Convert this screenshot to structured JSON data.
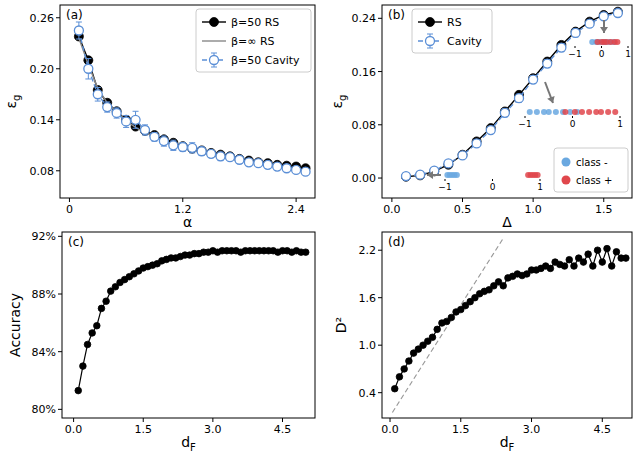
{
  "chart_data": [
    {
      "type": "line",
      "title": "(a)",
      "xlabel": "α",
      "ylabel": "εg",
      "x": [
        0.1,
        0.2,
        0.3,
        0.4,
        0.5,
        0.6,
        0.7,
        0.8,
        0.9,
        1.0,
        1.1,
        1.2,
        1.3,
        1.4,
        1.5,
        1.6,
        1.7,
        1.8,
        1.9,
        2.0,
        2.1,
        2.2,
        2.3,
        2.4,
        2.5
      ],
      "series": [
        {
          "name": "β=50 RS",
          "color": "#000000",
          "marker": "circle",
          "line_style": "solid",
          "values": [
            0.238,
            0.21,
            0.175,
            0.16,
            0.15,
            0.14,
            0.132,
            0.127,
            0.122,
            0.117,
            0.113,
            0.109,
            0.106,
            0.104,
            0.101,
            0.099,
            0.097,
            0.094,
            0.092,
            0.09,
            0.089,
            0.087,
            0.086,
            0.085,
            0.083
          ]
        },
        {
          "name": "β=∞ RS",
          "color": "#888888",
          "marker": "none",
          "line_style": "solid",
          "values": [
            0.236,
            0.205,
            0.177,
            0.16,
            0.149,
            0.139,
            0.131,
            0.125,
            0.12,
            0.115,
            0.111,
            0.107,
            0.104,
            0.101,
            0.098,
            0.096,
            0.094,
            0.092,
            0.09,
            0.088,
            0.086,
            0.084,
            0.082,
            0.081,
            0.079
          ]
        },
        {
          "name": "β=50 Cavity",
          "color": "#5b8fd6",
          "marker": "open_circle",
          "line_style": "dashed",
          "values": [
            0.245,
            0.2,
            0.17,
            0.155,
            0.148,
            0.138,
            0.14,
            0.128,
            0.12,
            0.115,
            0.11,
            0.108,
            0.107,
            0.103,
            0.1,
            0.097,
            0.096,
            0.093,
            0.09,
            0.089,
            0.087,
            0.085,
            0.083,
            0.081,
            0.079
          ],
          "errors": [
            0.01,
            0.012,
            0.008,
            0.006,
            0.006,
            0.007,
            0.01,
            0.006,
            0.005,
            0.006,
            0.006,
            0.005,
            0.006,
            0.005,
            0.004,
            0.005,
            0.004,
            0.004,
            0.004,
            0.004,
            0.003,
            0.003,
            0.003,
            0.003,
            0.003
          ]
        }
      ],
      "xlim": [
        -0.1,
        2.6
      ],
      "xticks": [
        0,
        1.2,
        2.4
      ],
      "ylim": [
        0.048,
        0.275
      ],
      "yticks": [
        0.08,
        0.14,
        {
          "value": 0.2,
          "label": "0.20"
        },
        0.26
      ],
      "grid": false,
      "legend": "upper right"
    },
    {
      "type": "line",
      "title": "(b)",
      "xlabel": "Δ",
      "ylabel": "εg",
      "x": [
        0.1,
        0.2,
        0.3,
        0.4,
        0.5,
        0.6,
        0.7,
        0.8,
        0.9,
        1.0,
        1.1,
        1.2,
        1.3,
        1.4,
        1.5,
        1.6
      ],
      "series": [
        {
          "name": "RS",
          "color": "#000000",
          "marker": "circle",
          "line_style": "solid",
          "values": [
            0.002,
            0.004,
            0.01,
            0.02,
            0.035,
            0.055,
            0.075,
            0.1,
            0.125,
            0.15,
            0.175,
            0.2,
            0.22,
            0.235,
            0.245,
            0.25
          ]
        },
        {
          "name": "Cavity",
          "color": "#5b8fd6",
          "marker": "open_circle",
          "line_style": "dashed",
          "values": [
            0.003,
            0.005,
            0.011,
            0.022,
            0.034,
            0.052,
            0.072,
            0.098,
            0.12,
            0.148,
            0.172,
            0.196,
            0.218,
            0.232,
            0.243,
            0.248
          ],
          "errors": [
            0.002,
            0.002,
            0.003,
            0.004,
            0.004,
            0.005,
            0.005,
            0.006,
            0.006,
            0.006,
            0.006,
            0.006,
            0.006,
            0.005,
            0.005,
            0.004
          ]
        }
      ],
      "xlim": [
        -0.07,
        1.7
      ],
      "xticks": [
        {
          "value": 0,
          "label": "0.0"
        },
        0.5,
        {
          "value": 1,
          "label": "1.0"
        },
        1.5
      ],
      "ylim": [
        -0.03,
        0.26
      ],
      "yticks": [
        {
          "value": 0,
          "label": "0.00"
        },
        0.08,
        0.16,
        0.24
      ],
      "grid": false,
      "legend": "upper left",
      "class_legend": [
        {
          "name": "class -",
          "color": "#6aa8e0"
        },
        {
          "name": "class +",
          "color": "#e0474c"
        }
      ],
      "insets": [
        {
          "xlim": [
            -1,
            1
          ],
          "xticks": [
            {
              "value": -1,
              "label": "−1"
            },
            0,
            1
          ],
          "classes": [
            [
              -0.35,
              -0.2,
              -0.1,
              0.05,
              0.15,
              0.3,
              0.45
            ],
            [
              -0.15,
              0.0,
              0.1,
              0.2,
              0.35,
              0.5,
              0.6
            ]
          ]
        },
        {
          "xlim": [
            -1,
            1
          ],
          "xticks": [
            {
              "value": -1,
              "label": "−1"
            },
            0,
            1
          ],
          "classes": [
            [
              -0.9,
              -0.75,
              -0.6,
              -0.5,
              -0.35,
              -0.2,
              -0.05,
              0.1
            ],
            [
              -0.15,
              0.05,
              0.2,
              0.35,
              0.5,
              0.6,
              0.75,
              0.9
            ]
          ]
        },
        {
          "xlim": [
            -1,
            1
          ],
          "xticks": [
            {
              "value": -1,
              "label": "−1"
            },
            0,
            1
          ],
          "classes": [
            [
              -0.95,
              -0.9,
              -0.85,
              -0.8,
              -0.75
            ],
            [
              0.75,
              0.8,
              0.85,
              0.9,
              0.95
            ]
          ]
        }
      ]
    },
    {
      "type": "line",
      "title": "(c)",
      "xlabel": "dF",
      "ylabel": "Accuracy",
      "x": [
        0.1,
        0.2,
        0.3,
        0.4,
        0.5,
        0.6,
        0.7,
        0.8,
        0.9,
        1.0,
        1.1,
        1.2,
        1.3,
        1.4,
        1.5,
        1.6,
        1.7,
        1.8,
        1.9,
        2.0,
        2.1,
        2.2,
        2.3,
        2.4,
        2.5,
        2.6,
        2.7,
        2.8,
        2.9,
        3.0,
        3.1,
        3.2,
        3.3,
        3.4,
        3.5,
        3.6,
        3.7,
        3.8,
        3.9,
        4.0,
        4.1,
        4.2,
        4.3,
        4.4,
        4.5,
        4.6,
        4.7,
        4.8,
        4.9,
        5.0
      ],
      "series": [
        {
          "color": "#000000",
          "marker": "circle",
          "line_style": "solid",
          "values": [
            81.3,
            83.0,
            84.5,
            85.3,
            85.8,
            87.0,
            87.5,
            88.2,
            88.5,
            88.8,
            89.0,
            89.2,
            89.4,
            89.6,
            89.8,
            89.9,
            90.0,
            90.1,
            90.3,
            90.4,
            90.5,
            90.5,
            90.6,
            90.7,
            90.7,
            90.8,
            90.8,
            90.9,
            90.9,
            91.0,
            90.9,
            91.0,
            91.0,
            91.0,
            91.0,
            90.9,
            91.0,
            91.0,
            91.0,
            91.0,
            91.0,
            91.0,
            91.0,
            90.9,
            91.0,
            91.0,
            90.9,
            91.0,
            90.9,
            90.9
          ]
        }
      ],
      "xlim": [
        -0.25,
        5.2
      ],
      "xticks": [
        {
          "value": 0,
          "label": "0.0"
        },
        1.5,
        {
          "value": 3,
          "label": "3.0"
        },
        4.5
      ],
      "ylim": [
        79.4,
        92.3
      ],
      "yticks": [
        {
          "value": 80,
          "label": "80%"
        },
        {
          "value": 84,
          "label": "84%"
        },
        {
          "value": 88,
          "label": "88%"
        },
        {
          "value": 92,
          "label": "92%"
        }
      ],
      "grid": false
    },
    {
      "type": "line",
      "title": "(d)",
      "xlabel": "dF",
      "ylabel": "D²",
      "x": [
        0.1,
        0.2,
        0.3,
        0.4,
        0.5,
        0.6,
        0.7,
        0.8,
        0.9,
        1.0,
        1.1,
        1.2,
        1.3,
        1.4,
        1.5,
        1.6,
        1.7,
        1.8,
        1.9,
        2.0,
        2.1,
        2.2,
        2.3,
        2.4,
        2.5,
        2.6,
        2.7,
        2.8,
        2.9,
        3.0,
        3.1,
        3.2,
        3.3,
        3.4,
        3.5,
        3.6,
        3.7,
        3.8,
        3.9,
        4.0,
        4.1,
        4.2,
        4.3,
        4.4,
        4.5,
        4.6,
        4.7,
        4.8,
        4.9,
        5.0
      ],
      "series": [
        {
          "color": "#999999",
          "marker": "none",
          "line_style": "dashed",
          "x": [
            0.05,
            2.4
          ],
          "values": [
            0.15,
            2.35
          ]
        },
        {
          "color": "#000000",
          "marker": "circle",
          "line_style": "solid",
          "values": [
            0.45,
            0.6,
            0.7,
            0.8,
            0.9,
            0.95,
            1.0,
            1.05,
            1.1,
            1.2,
            1.28,
            1.3,
            1.35,
            1.42,
            1.45,
            1.5,
            1.55,
            1.6,
            1.65,
            1.68,
            1.7,
            1.75,
            1.8,
            1.75,
            1.85,
            1.87,
            1.9,
            1.88,
            1.9,
            1.95,
            1.95,
            1.97,
            2.0,
            1.97,
            2.05,
            2.02,
            2.0,
            2.08,
            2.0,
            2.1,
            2.05,
            2.15,
            2.0,
            2.2,
            2.05,
            2.22,
            2.0,
            2.18,
            2.1,
            2.1
          ]
        }
      ],
      "xlim": [
        -0.17,
        5.13
      ],
      "xticks": [
        {
          "value": 0,
          "label": "0.0"
        },
        1.5,
        {
          "value": 3,
          "label": "3.0"
        },
        4.5
      ],
      "ylim": [
        0.08,
        2.43
      ],
      "yticks": [
        0.4,
        {
          "value": 1,
          "label": "1.0"
        },
        1.6,
        2.2
      ],
      "grid": false
    }
  ]
}
